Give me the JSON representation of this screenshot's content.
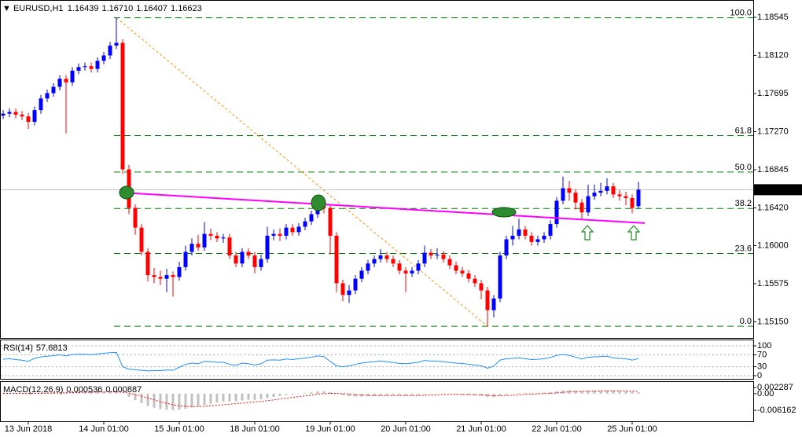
{
  "chart_data": [
    {
      "type": "candlestick",
      "title": "EURUSD,H1",
      "last_bar_labels": [
        "1.16439",
        "1.16710",
        "1.16407",
        "1.16623"
      ],
      "categories": [
        null,
        null,
        null,
        null,
        "13 Jun 2018",
        null,
        null,
        null,
        null,
        null,
        null,
        null,
        null,
        null,
        null,
        null,
        "14 Jun 01:00",
        null,
        null,
        null,
        null,
        null,
        null,
        null,
        null,
        null,
        null,
        null,
        "15 Jun 01:00",
        null,
        null,
        null,
        null,
        null,
        null,
        null,
        null,
        null,
        null,
        null,
        "18 Jun 01:00",
        null,
        null,
        null,
        null,
        null,
        null,
        null,
        null,
        null,
        null,
        null,
        "19 Jun 01:00",
        null,
        null,
        null,
        null,
        null,
        null,
        null,
        null,
        null,
        null,
        null,
        "20 Jun 01:00",
        null,
        null,
        null,
        null,
        null,
        null,
        null,
        null,
        null,
        null,
        null,
        "21 Jun 01:00",
        null,
        null,
        null,
        null,
        null,
        null,
        null,
        null,
        null,
        null,
        null,
        "22 Jun 01:00",
        null,
        null,
        null,
        null,
        null,
        null,
        null,
        null,
        null,
        null,
        null,
        "25 Jun 01:00",
        null
      ],
      "open": [
        1.1745,
        1.1747,
        1.1749,
        1.1746,
        1.1744,
        1.1738,
        1.1751,
        1.1764,
        1.177,
        1.1777,
        1.1786,
        1.1782,
        1.1795,
        1.1799,
        1.18,
        1.1797,
        1.1806,
        1.1812,
        1.1823,
        1.1826,
        1.1685,
        1.1642,
        1.162,
        1.1593,
        1.1567,
        1.1565,
        1.1563,
        1.1567,
        1.1565,
        1.1576,
        1.1593,
        1.1602,
        1.1598,
        1.1613,
        1.1611,
        1.1608,
        1.1609,
        1.1589,
        1.158,
        1.1593,
        1.1589,
        1.1576,
        1.1585,
        1.1611,
        1.1613,
        1.1611,
        1.162,
        1.1615,
        1.1621,
        1.1627,
        1.1635,
        1.1644,
        1.1642,
        1.1611,
        1.1558,
        1.1545,
        1.155,
        1.1563,
        1.1572,
        1.158,
        1.1585,
        1.1589,
        1.1585,
        1.158,
        1.1572,
        1.1569,
        1.1572,
        1.158,
        1.1592,
        1.1589,
        1.159,
        1.1585,
        1.1578,
        1.1572,
        1.1569,
        1.1563,
        1.1558,
        1.155,
        1.1528,
        1.1541,
        1.1589,
        1.1607,
        1.1611,
        1.1618,
        1.1611,
        1.1604,
        1.1607,
        1.1611,
        1.1624,
        1.165,
        1.1664,
        1.1659,
        1.1648,
        1.1637,
        1.1655,
        1.1659,
        1.1661,
        1.1666,
        1.1657,
        1.1655,
        1.1653,
        1.16439
      ],
      "high": [
        1.1751,
        1.1753,
        1.1753,
        1.175,
        1.1748,
        1.1755,
        1.1768,
        1.1774,
        1.1781,
        1.179,
        1.179,
        1.1799,
        1.1803,
        1.1804,
        1.1804,
        1.181,
        1.1816,
        1.1827,
        1.1854,
        1.183,
        1.169,
        1.1646,
        1.1624,
        1.1597,
        1.1575,
        1.1572,
        1.1574,
        1.1571,
        1.1582,
        1.16,
        1.1608,
        1.1612,
        1.1626,
        1.1619,
        1.1615,
        1.1613,
        1.1613,
        1.1593,
        1.1597,
        1.1597,
        1.1593,
        1.159,
        1.1621,
        1.1618,
        1.1619,
        1.1624,
        1.1624,
        1.1625,
        1.1631,
        1.1639,
        1.1652,
        1.1648,
        1.1646,
        1.1615,
        1.1562,
        1.1556,
        1.1567,
        1.1576,
        1.1584,
        1.1589,
        1.1596,
        1.1593,
        1.1589,
        1.1584,
        1.1576,
        1.1576,
        1.1584,
        1.16,
        1.1596,
        1.1597,
        1.1594,
        1.1589,
        1.1582,
        1.1576,
        1.1573,
        1.1567,
        1.1562,
        1.1554,
        1.1545,
        1.1593,
        1.1611,
        1.1622,
        1.163,
        1.1622,
        1.1615,
        1.1611,
        1.1615,
        1.1628,
        1.1654,
        1.1677,
        1.1672,
        1.1663,
        1.1652,
        1.1668,
        1.1668,
        1.167,
        1.1675,
        1.167,
        1.1662,
        1.166,
        1.1657,
        1.1671
      ],
      "low": [
        1.1741,
        1.1743,
        1.1742,
        1.174,
        1.173,
        1.1734,
        1.1747,
        1.176,
        1.1766,
        1.1773,
        1.1725,
        1.1778,
        1.1791,
        1.1795,
        1.1793,
        1.1793,
        1.1802,
        1.1808,
        1.1819,
        1.168,
        1.1635,
        1.1612,
        1.1589,
        1.156,
        1.1558,
        1.1556,
        1.1548,
        1.1543,
        1.1561,
        1.1572,
        1.1589,
        1.1594,
        1.1594,
        1.1606,
        1.1604,
        1.1603,
        1.1585,
        1.1576,
        1.1576,
        1.1585,
        1.1569,
        1.1572,
        1.1581,
        1.1606,
        1.1605,
        1.1607,
        1.1611,
        1.1611,
        1.1617,
        1.1623,
        1.1631,
        1.1636,
        1.159,
        1.1548,
        1.1538,
        1.1536,
        1.1546,
        1.1559,
        1.1568,
        1.1576,
        1.1581,
        1.1581,
        1.1576,
        1.1568,
        1.1548,
        1.1565,
        1.1568,
        1.1576,
        1.1585,
        1.1585,
        1.1581,
        1.1574,
        1.1568,
        1.1565,
        1.1559,
        1.1554,
        1.154,
        1.151,
        1.152,
        1.1537,
        1.1585,
        1.16,
        1.1607,
        1.1607,
        1.16,
        1.16,
        1.1603,
        1.1607,
        1.162,
        1.1646,
        1.165,
        1.164,
        1.163,
        1.1633,
        1.1651,
        1.1655,
        1.1657,
        1.1653,
        1.165,
        1.1645,
        1.1636,
        1.16407
      ],
      "close": [
        1.1747,
        1.1749,
        1.1746,
        1.1744,
        1.1738,
        1.1751,
        1.1764,
        1.177,
        1.1777,
        1.1786,
        1.1782,
        1.1795,
        1.1799,
        1.18,
        1.1797,
        1.1806,
        1.1812,
        1.1823,
        1.1826,
        1.1685,
        1.1642,
        1.162,
        1.1593,
        1.1567,
        1.1565,
        1.1563,
        1.1567,
        1.1565,
        1.1576,
        1.1593,
        1.1602,
        1.1598,
        1.1613,
        1.1611,
        1.1608,
        1.1609,
        1.1589,
        1.158,
        1.1593,
        1.1589,
        1.1576,
        1.1585,
        1.1611,
        1.1613,
        1.1611,
        1.162,
        1.1615,
        1.1621,
        1.1627,
        1.1635,
        1.1644,
        1.1642,
        1.1611,
        1.1558,
        1.1545,
        1.155,
        1.1563,
        1.1572,
        1.158,
        1.1585,
        1.1589,
        1.1585,
        1.158,
        1.1572,
        1.1569,
        1.1572,
        1.158,
        1.1592,
        1.1589,
        1.159,
        1.1585,
        1.1578,
        1.1572,
        1.1569,
        1.1563,
        1.1558,
        1.155,
        1.1528,
        1.1541,
        1.1589,
        1.1607,
        1.1611,
        1.1618,
        1.1611,
        1.1604,
        1.1607,
        1.1611,
        1.1624,
        1.165,
        1.1664,
        1.1659,
        1.1648,
        1.1637,
        1.1655,
        1.1659,
        1.1661,
        1.1666,
        1.1657,
        1.1655,
        1.1653,
        1.1642,
        1.16623
      ],
      "up_color": "#0000ff",
      "down_color": "#ff0000",
      "ylim": [
        1.1497,
        1.18738
      ],
      "yticks": [
        1.18545,
        {
          "value": 1.1812,
          "label": "1.18120"
        },
        1.17695,
        {
          "value": 1.1727,
          "label": "1.17270"
        },
        1.16845,
        {
          "value": 1.1642,
          "label": "1.16420"
        },
        {
          "value": 1.16,
          "label": "1.16000"
        },
        1.15575,
        {
          "value": 1.1515,
          "label": "1.15150"
        }
      ],
      "fib_color": "#008000",
      "fib_levels": [
        {
          "label": "100.0",
          "price": 1.1854
        },
        {
          "label": "61.8",
          "price": 1.17226
        },
        {
          "label": "50.0",
          "price": 1.1682
        },
        {
          "label": "38.2",
          "price": 1.16414
        },
        {
          "label": "23.6",
          "price": 1.15912
        },
        {
          "label": "0.0",
          "price": 1.151
        }
      ],
      "fib_line": {
        "start": [
          18,
          1.1854
        ],
        "end": [
          77,
          1.151
        ],
        "color": "#ff8c00"
      },
      "trendline": {
        "start": [
          19,
          1.1659
        ],
        "end": [
          102,
          1.1625
        ],
        "color": "#ff00ff"
      }
    },
    {
      "type": "line",
      "title": "RSI(14)",
      "color": "#1e90ff",
      "ylim": [
        0,
        100
      ],
      "yticks": [
        100,
        70,
        30,
        0
      ],
      "values": [
        55,
        57,
        54,
        52,
        48,
        58,
        63,
        65,
        67,
        70,
        66,
        71,
        72,
        72,
        70,
        73,
        75,
        77,
        78,
        30,
        22,
        20,
        18,
        16,
        17,
        17,
        19,
        18,
        28,
        38,
        42,
        40,
        48,
        47,
        45,
        45,
        38,
        35,
        42,
        40,
        36,
        40,
        52,
        53,
        52,
        56,
        54,
        57,
        59,
        62,
        66,
        64,
        48,
        33,
        30,
        33,
        38,
        42,
        45,
        47,
        49,
        47,
        44,
        41,
        40,
        42,
        45,
        51,
        49,
        49,
        47,
        44,
        42,
        41,
        38,
        36,
        33,
        25,
        32,
        52,
        57,
        58,
        60,
        57,
        54,
        55,
        57,
        61,
        68,
        71,
        68,
        62,
        56,
        62,
        63,
        64,
        65,
        60,
        58,
        57,
        52,
        57.6813
      ]
    },
    {
      "type": "bar",
      "title": "MACD(12,26,9)",
      "color": "#c0c0c0",
      "signal_color": "#ff0000",
      "ylim": [
        -0.006162,
        0.002287
      ],
      "yticks": [
        0.002287,
        {
          "value": 0,
          "label": "0.00"
        },
        -0.006162
      ],
      "values": [
        0.0001,
        0.0001,
        0.0001,
        0.0001,
        0.0,
        0.0001,
        0.0002,
        0.0003,
        0.0004,
        0.0005,
        0.0005,
        0.0006,
        0.0007,
        0.0007,
        0.0007,
        0.0008,
        0.0008,
        0.0009,
        0.001,
        -0.0001,
        -0.0012,
        -0.0024,
        -0.0035,
        -0.0045,
        -0.0052,
        -0.0057,
        -0.006,
        -0.0061,
        -0.006,
        -0.0056,
        -0.0051,
        -0.0047,
        -0.0042,
        -0.0037,
        -0.0033,
        -0.003,
        -0.0029,
        -0.0028,
        -0.0025,
        -0.0023,
        -0.0023,
        -0.0021,
        -0.0016,
        -0.0012,
        -0.0009,
        -0.0005,
        -0.0003,
        0.0,
        0.0002,
        0.0005,
        0.0008,
        0.0009,
        0.0006,
        0.0,
        -0.0006,
        -0.001,
        -0.0011,
        -0.0011,
        -0.001,
        -0.0009,
        -0.0008,
        -0.0007,
        -0.0007,
        -0.0007,
        -0.0008,
        -0.0007,
        -0.0005,
        -0.0003,
        -0.0002,
        -0.0001,
        -0.0001,
        -0.0002,
        -0.0003,
        -0.0004,
        -0.0005,
        -0.0006,
        -0.0008,
        -0.0012,
        -0.0013,
        -0.0008,
        -0.0004,
        -0.0001,
        0.0002,
        0.0003,
        0.0003,
        0.0003,
        0.0004,
        0.0006,
        0.0009,
        0.0012,
        0.0013,
        0.0012,
        0.001,
        0.0011,
        0.0011,
        0.0011,
        0.0012,
        0.0011,
        0.001,
        0.0009,
        0.0007,
        0.000536
      ],
      "signal": [
        0.0001,
        0.0001,
        0.0001,
        0.0001,
        0.0001,
        0.0001,
        0.0001,
        0.0002,
        0.0002,
        0.0003,
        0.0003,
        0.0004,
        0.0004,
        0.0005,
        0.0005,
        0.0006,
        0.0006,
        0.0007,
        0.0007,
        0.0005,
        0.0002,
        -0.0003,
        -0.0009,
        -0.0016,
        -0.0023,
        -0.003,
        -0.0036,
        -0.0041,
        -0.0045,
        -0.0047,
        -0.0048,
        -0.0048,
        -0.0047,
        -0.0045,
        -0.0043,
        -0.0041,
        -0.0039,
        -0.0037,
        -0.0035,
        -0.0033,
        -0.0031,
        -0.0029,
        -0.0026,
        -0.0023,
        -0.002,
        -0.0017,
        -0.0014,
        -0.0011,
        -0.0008,
        -0.0005,
        -0.0002,
        0.0,
        0.0001,
        0.0001,
        0.0,
        -0.0002,
        -0.0004,
        -0.0005,
        -0.0006,
        -0.0007,
        -0.0007,
        -0.0007,
        -0.0007,
        -0.0007,
        -0.0007,
        -0.0007,
        -0.0007,
        -0.0006,
        -0.0005,
        -0.0004,
        -0.0003,
        -0.0003,
        -0.0003,
        -0.0003,
        -0.0003,
        -0.0004,
        -0.0005,
        -0.0006,
        -0.0008,
        -0.0008,
        -0.0007,
        -0.0006,
        -0.0004,
        -0.0003,
        -0.0002,
        -0.0001,
        0.0,
        0.0001,
        0.0003,
        0.0005,
        0.0007,
        0.0008,
        0.0008,
        0.0009,
        0.0009,
        0.001,
        0.001,
        0.001,
        0.001,
        0.001,
        0.0009,
        0.000887
      ]
    }
  ]
}
